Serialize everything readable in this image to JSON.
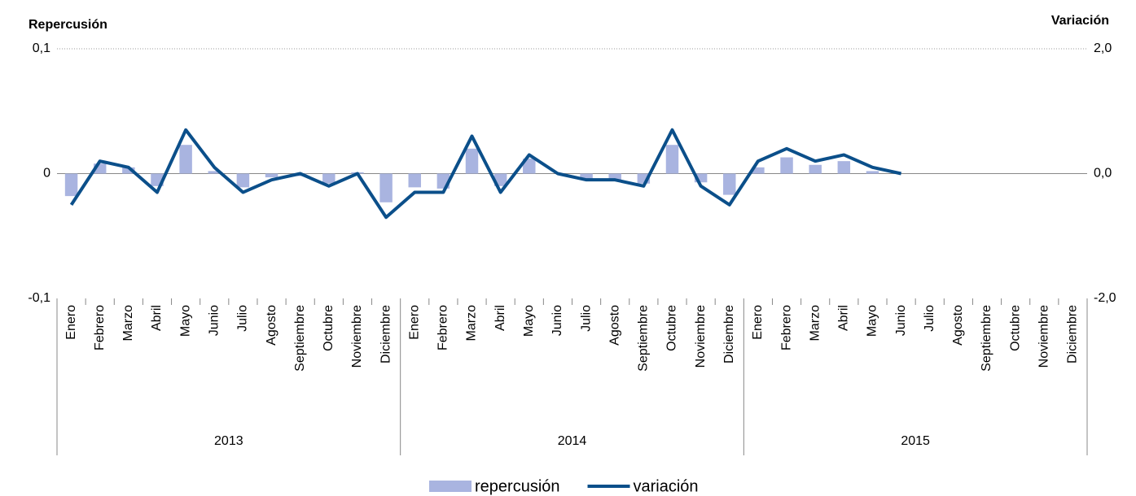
{
  "chart_data": {
    "type": "bar-line",
    "ylabel": "Repercusión",
    "y2label": "Variación",
    "categories": [
      "Enero",
      "Febrero",
      "Marzo",
      "Abril",
      "Mayo",
      "Junio",
      "Julio",
      "Agosto",
      "Septiembre",
      "Octubre",
      "Noviembre",
      "Diciembre",
      "Enero",
      "Febrero",
      "Marzo",
      "Abril",
      "Mayo",
      "Junio",
      "Julio",
      "Agosto",
      "Septiembre",
      "Octubre",
      "Noviembre",
      "Diciembre",
      "Enero",
      "Febrero",
      "Marzo",
      "Abril",
      "Mayo",
      "Junio",
      "Julio",
      "Agosto",
      "Septiembre",
      "Octubre",
      "Noviembre",
      "Diciembre"
    ],
    "groups": [
      "2013",
      "2014",
      "2015"
    ],
    "series": [
      {
        "name": "repercusión",
        "type": "bar",
        "color": "#a9b4e0",
        "axis": "y",
        "values": [
          -0.018,
          0.008,
          0.005,
          -0.01,
          0.023,
          0.002,
          -0.011,
          -0.003,
          -0.002,
          -0.008,
          0.001,
          -0.023,
          -0.011,
          -0.012,
          0.02,
          -0.01,
          0.012,
          0,
          -0.005,
          -0.005,
          -0.008,
          0.023,
          -0.007,
          -0.017,
          0.005,
          0.013,
          0.007,
          0.01,
          0.002,
          0,
          null,
          null,
          null,
          null,
          null,
          null
        ]
      },
      {
        "name": "variación",
        "type": "line",
        "color": "#0b4f8a",
        "axis": "y2",
        "values": [
          -0.5,
          0.2,
          0.1,
          -0.3,
          0.7,
          0.1,
          -0.3,
          -0.1,
          0,
          -0.2,
          0,
          -0.7,
          -0.3,
          -0.3,
          0.6,
          -0.3,
          0.3,
          0,
          -0.1,
          -0.1,
          -0.2,
          0.7,
          -0.2,
          -0.5,
          0.2,
          0.4,
          0.2,
          0.3,
          0.1,
          0,
          null,
          null,
          null,
          null,
          null,
          null
        ]
      }
    ],
    "ylim": [
      -0.1,
      0.1
    ],
    "yticks": [
      {
        "value": 0.1,
        "label": "0,1"
      },
      0,
      {
        "value": -0.1,
        "label": "-0,1"
      }
    ],
    "y2lim": [
      -2,
      2
    ],
    "y2ticks": [
      {
        "value": 2,
        "label": "2,0"
      },
      {
        "value": 0,
        "label": "0,0"
      },
      {
        "value": -2,
        "label": "-2,0"
      }
    ],
    "grid": true
  }
}
